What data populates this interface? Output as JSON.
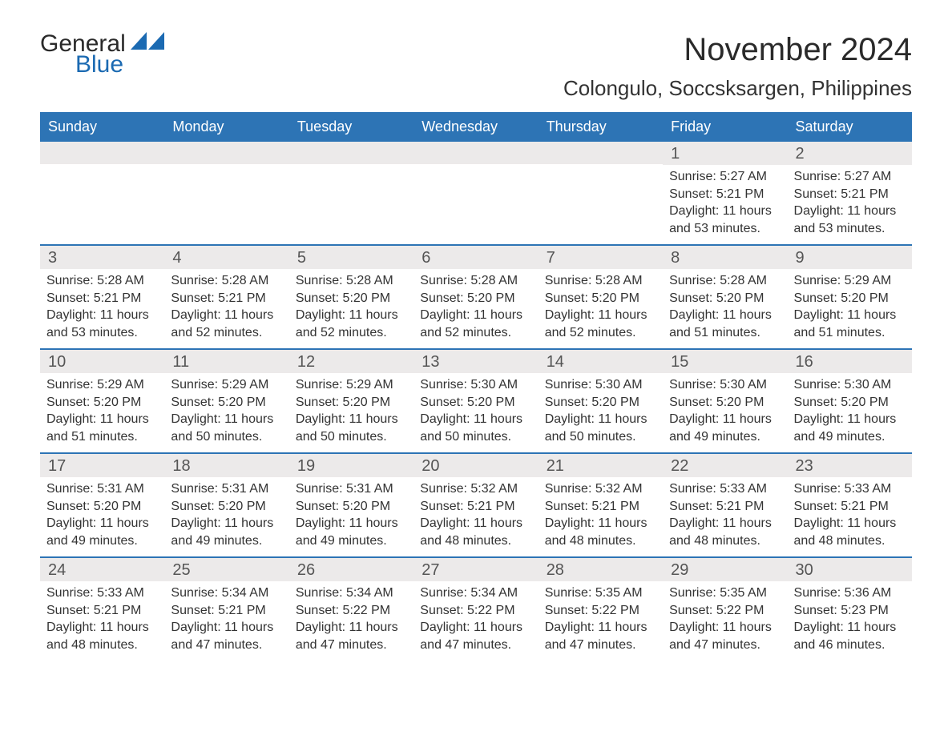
{
  "header": {
    "logo_text1": "General",
    "logo_text2": "Blue",
    "month_title": "November 2024",
    "location": "Colongulo, Soccsksargen, Philippines"
  },
  "colors": {
    "header_bg": "#2d74b5",
    "header_text": "#ffffff",
    "day_bar_bg": "#eceaea",
    "body_text": "#333333",
    "logo_blue": "#1b6ab2",
    "row_border": "#2d74b5",
    "page_bg": "#ffffff"
  },
  "typography": {
    "month_title_size": 40,
    "location_size": 26,
    "weekday_size": 18,
    "daynum_size": 20,
    "body_size": 16,
    "font_family": "Arial"
  },
  "weekdays": [
    "Sunday",
    "Monday",
    "Tuesday",
    "Wednesday",
    "Thursday",
    "Friday",
    "Saturday"
  ],
  "weeks": [
    [
      {
        "day": "",
        "sunrise": "",
        "sunset": "",
        "daylight": ""
      },
      {
        "day": "",
        "sunrise": "",
        "sunset": "",
        "daylight": ""
      },
      {
        "day": "",
        "sunrise": "",
        "sunset": "",
        "daylight": ""
      },
      {
        "day": "",
        "sunrise": "",
        "sunset": "",
        "daylight": ""
      },
      {
        "day": "",
        "sunrise": "",
        "sunset": "",
        "daylight": ""
      },
      {
        "day": "1",
        "sunrise": "Sunrise: 5:27 AM",
        "sunset": "Sunset: 5:21 PM",
        "daylight": "Daylight: 11 hours and 53 minutes."
      },
      {
        "day": "2",
        "sunrise": "Sunrise: 5:27 AM",
        "sunset": "Sunset: 5:21 PM",
        "daylight": "Daylight: 11 hours and 53 minutes."
      }
    ],
    [
      {
        "day": "3",
        "sunrise": "Sunrise: 5:28 AM",
        "sunset": "Sunset: 5:21 PM",
        "daylight": "Daylight: 11 hours and 53 minutes."
      },
      {
        "day": "4",
        "sunrise": "Sunrise: 5:28 AM",
        "sunset": "Sunset: 5:21 PM",
        "daylight": "Daylight: 11 hours and 52 minutes."
      },
      {
        "day": "5",
        "sunrise": "Sunrise: 5:28 AM",
        "sunset": "Sunset: 5:20 PM",
        "daylight": "Daylight: 11 hours and 52 minutes."
      },
      {
        "day": "6",
        "sunrise": "Sunrise: 5:28 AM",
        "sunset": "Sunset: 5:20 PM",
        "daylight": "Daylight: 11 hours and 52 minutes."
      },
      {
        "day": "7",
        "sunrise": "Sunrise: 5:28 AM",
        "sunset": "Sunset: 5:20 PM",
        "daylight": "Daylight: 11 hours and 52 minutes."
      },
      {
        "day": "8",
        "sunrise": "Sunrise: 5:28 AM",
        "sunset": "Sunset: 5:20 PM",
        "daylight": "Daylight: 11 hours and 51 minutes."
      },
      {
        "day": "9",
        "sunrise": "Sunrise: 5:29 AM",
        "sunset": "Sunset: 5:20 PM",
        "daylight": "Daylight: 11 hours and 51 minutes."
      }
    ],
    [
      {
        "day": "10",
        "sunrise": "Sunrise: 5:29 AM",
        "sunset": "Sunset: 5:20 PM",
        "daylight": "Daylight: 11 hours and 51 minutes."
      },
      {
        "day": "11",
        "sunrise": "Sunrise: 5:29 AM",
        "sunset": "Sunset: 5:20 PM",
        "daylight": "Daylight: 11 hours and 50 minutes."
      },
      {
        "day": "12",
        "sunrise": "Sunrise: 5:29 AM",
        "sunset": "Sunset: 5:20 PM",
        "daylight": "Daylight: 11 hours and 50 minutes."
      },
      {
        "day": "13",
        "sunrise": "Sunrise: 5:30 AM",
        "sunset": "Sunset: 5:20 PM",
        "daylight": "Daylight: 11 hours and 50 minutes."
      },
      {
        "day": "14",
        "sunrise": "Sunrise: 5:30 AM",
        "sunset": "Sunset: 5:20 PM",
        "daylight": "Daylight: 11 hours and 50 minutes."
      },
      {
        "day": "15",
        "sunrise": "Sunrise: 5:30 AM",
        "sunset": "Sunset: 5:20 PM",
        "daylight": "Daylight: 11 hours and 49 minutes."
      },
      {
        "day": "16",
        "sunrise": "Sunrise: 5:30 AM",
        "sunset": "Sunset: 5:20 PM",
        "daylight": "Daylight: 11 hours and 49 minutes."
      }
    ],
    [
      {
        "day": "17",
        "sunrise": "Sunrise: 5:31 AM",
        "sunset": "Sunset: 5:20 PM",
        "daylight": "Daylight: 11 hours and 49 minutes."
      },
      {
        "day": "18",
        "sunrise": "Sunrise: 5:31 AM",
        "sunset": "Sunset: 5:20 PM",
        "daylight": "Daylight: 11 hours and 49 minutes."
      },
      {
        "day": "19",
        "sunrise": "Sunrise: 5:31 AM",
        "sunset": "Sunset: 5:20 PM",
        "daylight": "Daylight: 11 hours and 49 minutes."
      },
      {
        "day": "20",
        "sunrise": "Sunrise: 5:32 AM",
        "sunset": "Sunset: 5:21 PM",
        "daylight": "Daylight: 11 hours and 48 minutes."
      },
      {
        "day": "21",
        "sunrise": "Sunrise: 5:32 AM",
        "sunset": "Sunset: 5:21 PM",
        "daylight": "Daylight: 11 hours and 48 minutes."
      },
      {
        "day": "22",
        "sunrise": "Sunrise: 5:33 AM",
        "sunset": "Sunset: 5:21 PM",
        "daylight": "Daylight: 11 hours and 48 minutes."
      },
      {
        "day": "23",
        "sunrise": "Sunrise: 5:33 AM",
        "sunset": "Sunset: 5:21 PM",
        "daylight": "Daylight: 11 hours and 48 minutes."
      }
    ],
    [
      {
        "day": "24",
        "sunrise": "Sunrise: 5:33 AM",
        "sunset": "Sunset: 5:21 PM",
        "daylight": "Daylight: 11 hours and 48 minutes."
      },
      {
        "day": "25",
        "sunrise": "Sunrise: 5:34 AM",
        "sunset": "Sunset: 5:21 PM",
        "daylight": "Daylight: 11 hours and 47 minutes."
      },
      {
        "day": "26",
        "sunrise": "Sunrise: 5:34 AM",
        "sunset": "Sunset: 5:22 PM",
        "daylight": "Daylight: 11 hours and 47 minutes."
      },
      {
        "day": "27",
        "sunrise": "Sunrise: 5:34 AM",
        "sunset": "Sunset: 5:22 PM",
        "daylight": "Daylight: 11 hours and 47 minutes."
      },
      {
        "day": "28",
        "sunrise": "Sunrise: 5:35 AM",
        "sunset": "Sunset: 5:22 PM",
        "daylight": "Daylight: 11 hours and 47 minutes."
      },
      {
        "day": "29",
        "sunrise": "Sunrise: 5:35 AM",
        "sunset": "Sunset: 5:22 PM",
        "daylight": "Daylight: 11 hours and 47 minutes."
      },
      {
        "day": "30",
        "sunrise": "Sunrise: 5:36 AM",
        "sunset": "Sunset: 5:23 PM",
        "daylight": "Daylight: 11 hours and 46 minutes."
      }
    ]
  ]
}
